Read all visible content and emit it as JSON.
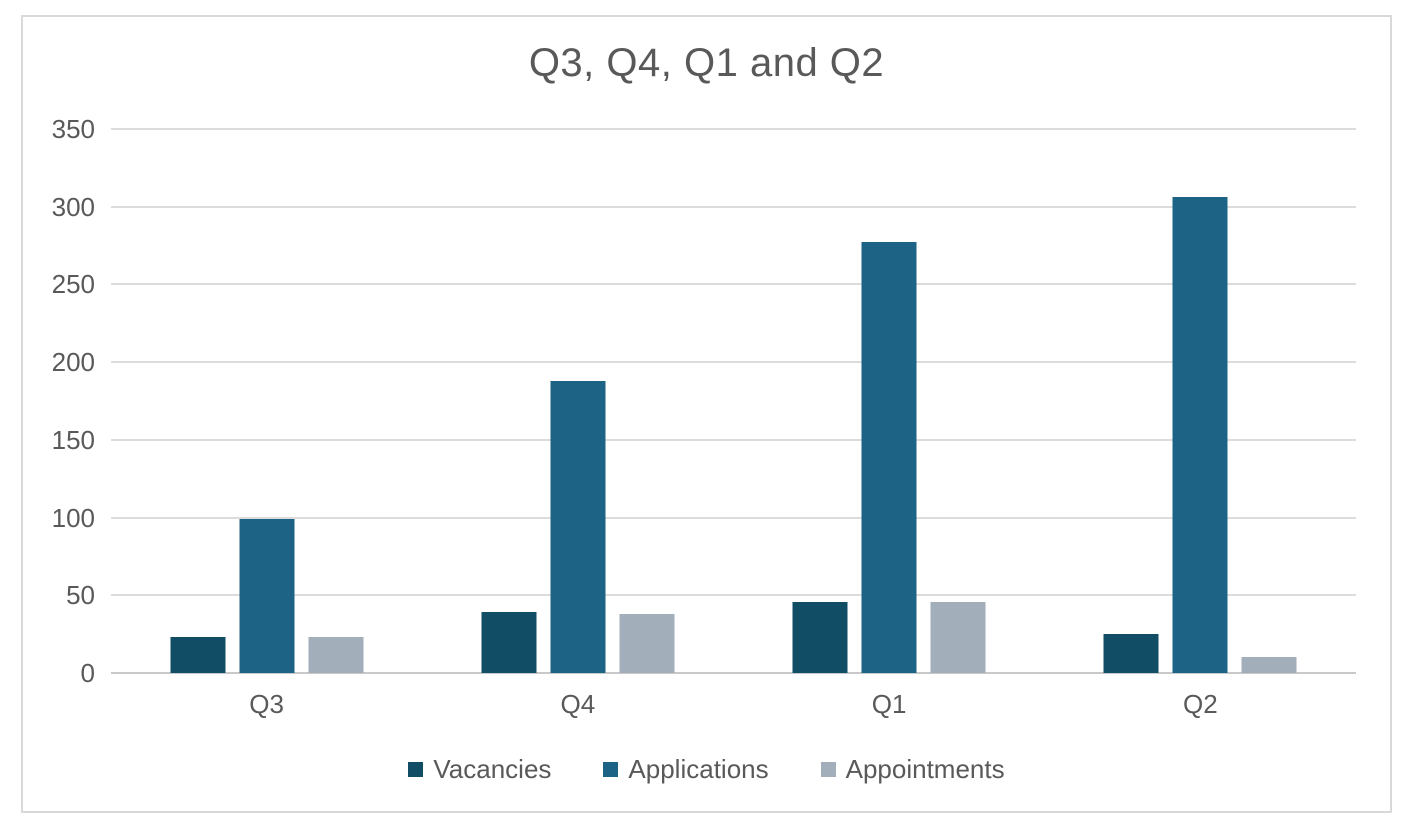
{
  "page": {
    "background_color": "#ffffff",
    "frame_border_color": "#d9d9d9"
  },
  "chart_data": {
    "type": "bar",
    "title": "Q3, Q4, Q1 and Q2",
    "categories": [
      "Q3",
      "Q4",
      "Q1",
      "Q2"
    ],
    "series": [
      {
        "name": "Vacancies",
        "color": "#114e66",
        "values": [
          23,
          39,
          46,
          25
        ]
      },
      {
        "name": "Applications",
        "color": "#1d6385",
        "values": [
          99,
          188,
          277,
          306
        ]
      },
      {
        "name": "Appointments",
        "color": "#a3aebb",
        "values": [
          23,
          38,
          46,
          10
        ]
      }
    ],
    "xlabel": "",
    "ylabel": "",
    "ylim": [
      0,
      350
    ],
    "yticks": [
      0,
      50,
      100,
      150,
      200,
      250,
      300,
      350
    ],
    "grid": true,
    "gridline_color": "#dcdcdc",
    "baseline_color": "#c9c9c9",
    "text_color": "#595959",
    "legend_position": "bottom"
  }
}
